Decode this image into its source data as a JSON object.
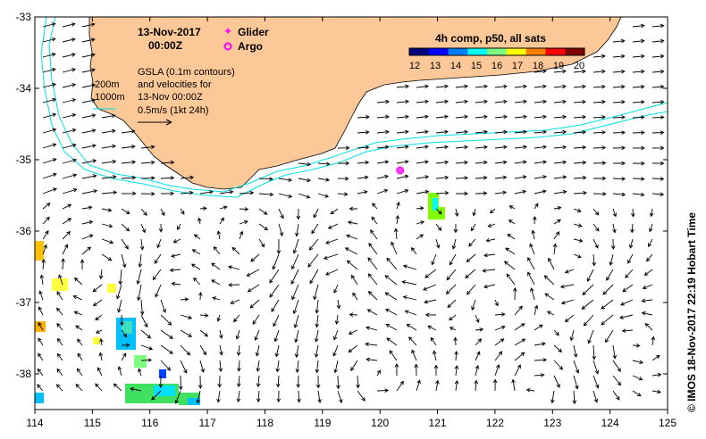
{
  "title": {
    "date": "13-Nov-2017",
    "time": "00:00Z"
  },
  "legend": {
    "glider": "Glider",
    "argo": "Argo",
    "glider_color": "#ff00ff",
    "argo_color": "#ff00ff"
  },
  "annotation": {
    "line1": "GSLA (0.1m contours)",
    "line2": "and velocities for",
    "line3": "13-Nov 00:00Z",
    "line4": "0.5m/s (1kt 24h)"
  },
  "depth_labels": {
    "d200": "200m",
    "d1000": "1000m"
  },
  "colorbar": {
    "title": "4h comp, p50, all sats",
    "ticks": [
      "12",
      "13",
      "14",
      "15",
      "16",
      "17",
      "18",
      "19",
      "20"
    ],
    "colors": [
      "#00007f",
      "#0000ff",
      "#007fff",
      "#00ffff",
      "#7fff7f",
      "#ffff00",
      "#ff7f00",
      "#ff0000",
      "#7f0000"
    ]
  },
  "credit": "© IMOS 18-Nov-2017 22:19 Hobart Time",
  "axes": {
    "x_ticks": [
      "114",
      "115",
      "116",
      "117",
      "118",
      "119",
      "120",
      "121",
      "122",
      "123",
      "124",
      "125"
    ],
    "y_ticks": [
      "-33",
      "-34",
      "-35",
      "-36",
      "-37",
      "-38"
    ],
    "xlim": [
      114,
      125
    ],
    "ylim": [
      -38.5,
      -33
    ]
  },
  "colors": {
    "land": "#fcc898",
    "bathymetry": "#00e0e0",
    "vectors": "#000000"
  },
  "argo_position": {
    "lon": 120.35,
    "lat": -35.15
  }
}
